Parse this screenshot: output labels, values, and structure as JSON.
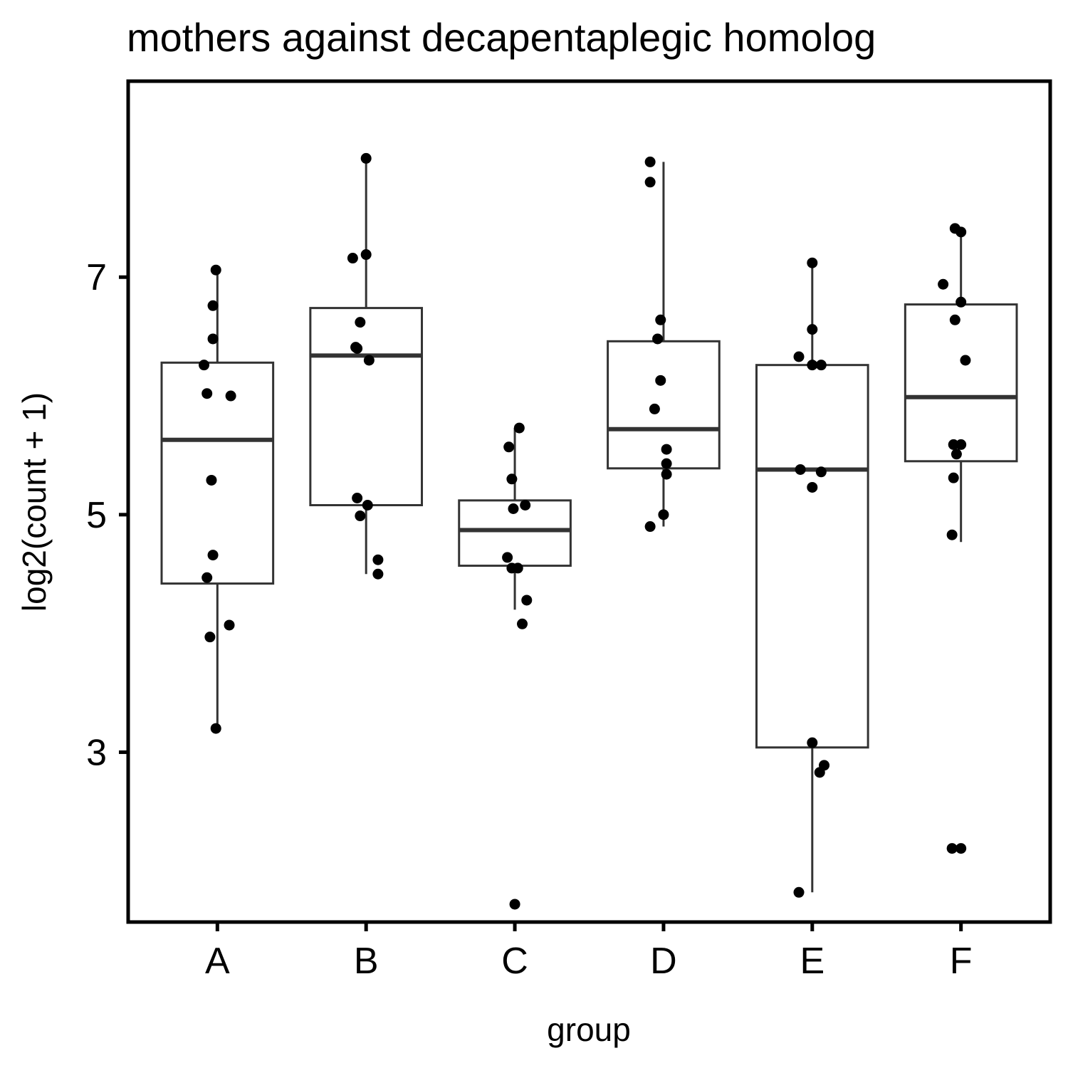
{
  "chart_data": {
    "type": "boxplot",
    "title": "mothers against decapentaplegic homolog",
    "xlabel": "group",
    "ylabel": "log2(count + 1)",
    "categories": [
      "A",
      "B",
      "C",
      "D",
      "E",
      "F"
    ],
    "ylim": [
      1.57,
      8.65
    ],
    "yticks": [
      3,
      5,
      7
    ],
    "ytick_labels": [
      "3",
      "5",
      "7"
    ],
    "grid": false,
    "colors": {
      "box_stroke": "#333333",
      "point": "#000000",
      "frame": "#000000"
    },
    "boxes": [
      {
        "group": "A",
        "q1": 4.42,
        "median": 5.63,
        "q3": 6.28,
        "whisker_low": 3.2,
        "whisker_high": 7.06
      },
      {
        "group": "B",
        "q1": 5.08,
        "median": 6.34,
        "q3": 6.74,
        "whisker_low": 4.5,
        "whisker_high": 8.0
      },
      {
        "group": "C",
        "q1": 4.57,
        "median": 4.87,
        "q3": 5.12,
        "whisker_low": 4.2,
        "whisker_high": 5.73
      },
      {
        "group": "D",
        "q1": 5.39,
        "median": 5.72,
        "q3": 6.46,
        "whisker_low": 4.9,
        "whisker_high": 7.97
      },
      {
        "group": "E",
        "q1": 3.04,
        "median": 5.38,
        "q3": 6.26,
        "whisker_low": 1.82,
        "whisker_high": 7.12
      },
      {
        "group": "F",
        "q1": 5.45,
        "median": 5.99,
        "q3": 6.77,
        "whisker_low": 4.77,
        "whisker_high": 7.38
      }
    ],
    "points": [
      {
        "group": "A",
        "x": -0.01,
        "y": 7.06
      },
      {
        "group": "A",
        "x": -0.03,
        "y": 6.76
      },
      {
        "group": "A",
        "x": -0.03,
        "y": 6.48
      },
      {
        "group": "A",
        "x": -0.09,
        "y": 6.26
      },
      {
        "group": "A",
        "x": -0.07,
        "y": 6.02
      },
      {
        "group": "A",
        "x": 0.09,
        "y": 6.0
      },
      {
        "group": "A",
        "x": -0.04,
        "y": 5.29
      },
      {
        "group": "A",
        "x": -0.03,
        "y": 4.66
      },
      {
        "group": "A",
        "x": -0.07,
        "y": 4.47
      },
      {
        "group": "A",
        "x": 0.08,
        "y": 4.07
      },
      {
        "group": "A",
        "x": -0.05,
        "y": 3.97
      },
      {
        "group": "A",
        "x": -0.01,
        "y": 3.2
      },
      {
        "group": "B",
        "x": 0.0,
        "y": 8.0
      },
      {
        "group": "B",
        "x": 0.0,
        "y": 7.19
      },
      {
        "group": "B",
        "x": -0.09,
        "y": 7.16
      },
      {
        "group": "B",
        "x": -0.04,
        "y": 6.62
      },
      {
        "group": "B",
        "x": -0.07,
        "y": 6.41
      },
      {
        "group": "B",
        "x": -0.06,
        "y": 6.4
      },
      {
        "group": "B",
        "x": 0.02,
        "y": 6.3
      },
      {
        "group": "B",
        "x": -0.06,
        "y": 5.14
      },
      {
        "group": "B",
        "x": 0.01,
        "y": 5.08
      },
      {
        "group": "B",
        "x": -0.04,
        "y": 4.99
      },
      {
        "group": "B",
        "x": 0.08,
        "y": 4.62
      },
      {
        "group": "B",
        "x": 0.08,
        "y": 4.5
      },
      {
        "group": "C",
        "x": 0.03,
        "y": 5.73
      },
      {
        "group": "C",
        "x": -0.04,
        "y": 5.57
      },
      {
        "group": "C",
        "x": -0.02,
        "y": 5.3
      },
      {
        "group": "C",
        "x": 0.07,
        "y": 5.08
      },
      {
        "group": "C",
        "x": -0.01,
        "y": 5.05
      },
      {
        "group": "C",
        "x": -0.05,
        "y": 4.64
      },
      {
        "group": "C",
        "x": -0.02,
        "y": 4.55
      },
      {
        "group": "C",
        "x": 0.02,
        "y": 4.55
      },
      {
        "group": "C",
        "x": 0.08,
        "y": 4.28
      },
      {
        "group": "C",
        "x": 0.05,
        "y": 4.08
      },
      {
        "group": "C",
        "x": 0.0,
        "y": 1.72
      },
      {
        "group": "D",
        "x": -0.09,
        "y": 7.97
      },
      {
        "group": "D",
        "x": -0.09,
        "y": 7.8
      },
      {
        "group": "D",
        "x": -0.02,
        "y": 6.64
      },
      {
        "group": "D",
        "x": -0.04,
        "y": 6.48
      },
      {
        "group": "D",
        "x": -0.02,
        "y": 6.13
      },
      {
        "group": "D",
        "x": -0.06,
        "y": 5.89
      },
      {
        "group": "D",
        "x": 0.02,
        "y": 5.55
      },
      {
        "group": "D",
        "x": 0.02,
        "y": 5.43
      },
      {
        "group": "D",
        "x": 0.02,
        "y": 5.34
      },
      {
        "group": "D",
        "x": 0.0,
        "y": 5.0
      },
      {
        "group": "D",
        "x": -0.09,
        "y": 4.9
      },
      {
        "group": "E",
        "x": 0.0,
        "y": 7.12
      },
      {
        "group": "E",
        "x": 0.0,
        "y": 6.56
      },
      {
        "group": "E",
        "x": -0.09,
        "y": 6.33
      },
      {
        "group": "E",
        "x": 0.0,
        "y": 6.26
      },
      {
        "group": "E",
        "x": 0.06,
        "y": 6.26
      },
      {
        "group": "E",
        "x": -0.08,
        "y": 5.38
      },
      {
        "group": "E",
        "x": 0.06,
        "y": 5.36
      },
      {
        "group": "E",
        "x": 0.0,
        "y": 5.23
      },
      {
        "group": "E",
        "x": 0.0,
        "y": 3.08
      },
      {
        "group": "E",
        "x": 0.08,
        "y": 2.89
      },
      {
        "group": "E",
        "x": 0.05,
        "y": 2.83
      },
      {
        "group": "E",
        "x": -0.09,
        "y": 1.82
      },
      {
        "group": "F",
        "x": -0.04,
        "y": 7.41
      },
      {
        "group": "F",
        "x": 0.0,
        "y": 7.38
      },
      {
        "group": "F",
        "x": -0.12,
        "y": 6.94
      },
      {
        "group": "F",
        "x": 0.0,
        "y": 6.79
      },
      {
        "group": "F",
        "x": -0.04,
        "y": 6.64
      },
      {
        "group": "F",
        "x": 0.03,
        "y": 6.3
      },
      {
        "group": "F",
        "x": -0.05,
        "y": 5.59
      },
      {
        "group": "F",
        "x": 0.0,
        "y": 5.59
      },
      {
        "group": "F",
        "x": -0.03,
        "y": 5.51
      },
      {
        "group": "F",
        "x": -0.05,
        "y": 5.31
      },
      {
        "group": "F",
        "x": -0.06,
        "y": 4.83
      },
      {
        "group": "F",
        "x": 0.0,
        "y": 2.19
      },
      {
        "group": "F",
        "x": -0.06,
        "y": 2.19
      }
    ]
  }
}
